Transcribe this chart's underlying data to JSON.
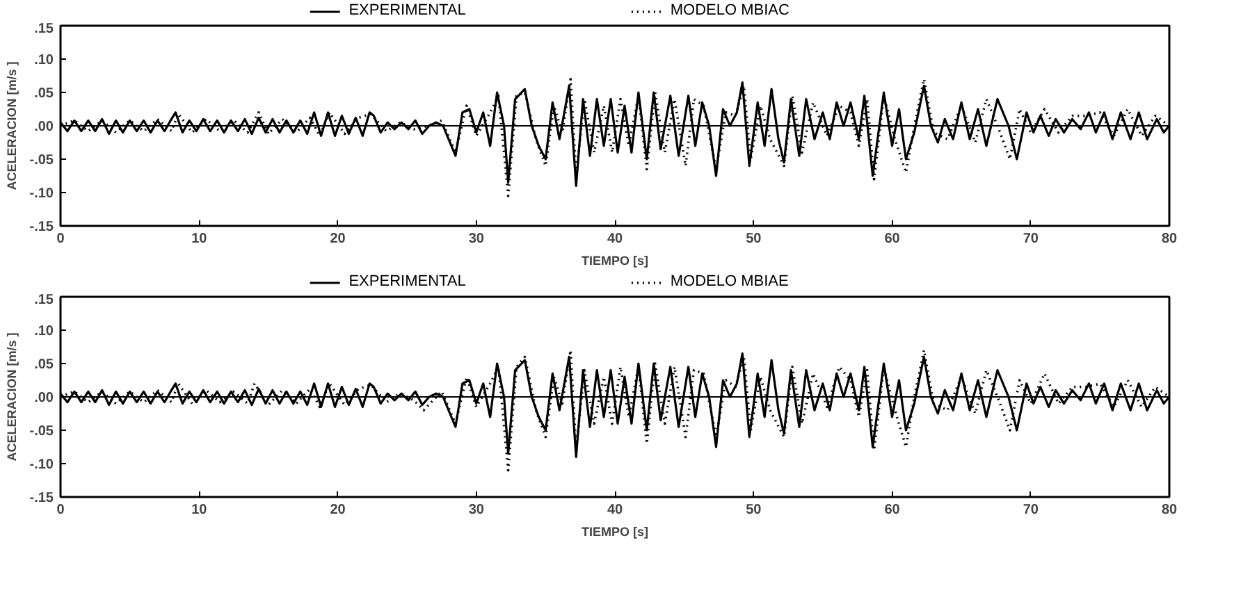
{
  "chart_data": [
    {
      "type": "line",
      "xlabel": "TIEMPO [s]",
      "ylabel": "ACELERACION [m/s ]",
      "legend": "top",
      "grid": false,
      "xlim": [
        0,
        80
      ],
      "ylim": [
        -0.15,
        0.15
      ],
      "xticks": [
        0,
        10,
        20,
        30,
        40,
        50,
        60,
        70,
        80
      ],
      "yticks": [
        {
          "value": -0.15,
          "label": "-.15"
        },
        {
          "value": -0.1,
          "label": "-.10"
        },
        {
          "value": -0.05,
          "label": "-.05"
        },
        {
          "value": 0,
          "label": ".00"
        },
        {
          "value": 0.05,
          "label": ".05"
        },
        {
          "value": 0.1,
          "label": ".10"
        },
        {
          "value": 0.15,
          "label": ".15"
        }
      ],
      "ref_lines": [
        {
          "axis": "y",
          "value": 0,
          "color": "#000000"
        }
      ],
      "series": [
        {
          "name": "EXPERIMENTAL",
          "color": "#000000",
          "line_style": "solid",
          "x": [
            0,
            0.5,
            1,
            1.5,
            2,
            2.5,
            3,
            3.5,
            4,
            4.5,
            5,
            5.5,
            6,
            6.5,
            7,
            7.5,
            8,
            8.3,
            8.8,
            9.3,
            9.8,
            10.3,
            10.8,
            11.3,
            11.8,
            12.3,
            12.8,
            13.3,
            13.8,
            14.3,
            14.8,
            15.3,
            15.8,
            16.3,
            16.8,
            17.3,
            17.8,
            18.3,
            18.8,
            19.3,
            19.8,
            20.3,
            20.8,
            21.3,
            21.8,
            22.3,
            22.6,
            23.1,
            23.6,
            24.1,
            24.6,
            25.1,
            25.6,
            26.1,
            26.6,
            27.1,
            27.6,
            28.5,
            29,
            29.5,
            30,
            30.5,
            31,
            31.5,
            32,
            32.3,
            32.8,
            33.5,
            34,
            34.5,
            35,
            35.5,
            36,
            36.7,
            37.2,
            37.7,
            38.2,
            38.7,
            39.2,
            39.7,
            40.2,
            40.7,
            41.2,
            41.7,
            42.3,
            42.8,
            43.3,
            44,
            44.6,
            45.3,
            45.8,
            46.3,
            46.8,
            47.3,
            47.8,
            48.3,
            48.8,
            49.2,
            49.7,
            50.3,
            50.8,
            51.3,
            51.8,
            52.2,
            52.7,
            53.3,
            53.8,
            54.4,
            55,
            55.5,
            56,
            56.5,
            57,
            57.6,
            58,
            58.6,
            59.4,
            60,
            60.5,
            61,
            61.6,
            62.3,
            62.8,
            63.3,
            63.8,
            64.4,
            65,
            65.6,
            66.2,
            66.8,
            67.6,
            68.4,
            69,
            69.7,
            70.2,
            70.7,
            71.3,
            71.8,
            72.4,
            73,
            73.6,
            74.2,
            74.7,
            75.3,
            75.9,
            76.5,
            77.2,
            77.8,
            78.4,
            79.1,
            79.6,
            80
          ],
          "values": [
            0.005,
            -0.008,
            0.008,
            -0.008,
            0.008,
            -0.008,
            0.01,
            -0.012,
            0.008,
            -0.01,
            0.008,
            -0.008,
            0.008,
            -0.01,
            0.008,
            -0.008,
            0.01,
            0.02,
            -0.01,
            0.008,
            -0.008,
            0.01,
            -0.008,
            0.008,
            -0.01,
            0.008,
            -0.008,
            0.01,
            -0.012,
            0.012,
            -0.01,
            0.01,
            -0.01,
            0.008,
            -0.01,
            0.008,
            -0.012,
            0.02,
            -0.015,
            0.02,
            -0.015,
            0.015,
            -0.012,
            0.012,
            -0.015,
            0.02,
            0.015,
            -0.01,
            0.005,
            -0.005,
            0.005,
            -0.005,
            0.008,
            -0.012,
            0,
            0.005,
            0,
            -0.045,
            0.02,
            0.025,
            -0.01,
            0.02,
            -0.03,
            0.05,
            0,
            -0.085,
            0.04,
            0.055,
            0,
            -0.03,
            -0.05,
            0.035,
            -0.02,
            0.06,
            -0.09,
            0.04,
            -0.045,
            0.04,
            -0.03,
            0.04,
            -0.04,
            0.03,
            -0.04,
            0.05,
            -0.05,
            0.05,
            -0.035,
            0.045,
            -0.045,
            0.045,
            -0.03,
            0.035,
            0,
            -0.075,
            0.025,
            0,
            0.02,
            0.065,
            -0.06,
            0.035,
            -0.03,
            0.055,
            -0.02,
            -0.055,
            0.04,
            -0.045,
            0.04,
            -0.02,
            0.02,
            -0.02,
            0.035,
            0,
            0.035,
            -0.02,
            0.045,
            -0.075,
            0.05,
            -0.03,
            0.025,
            -0.05,
            -0.01,
            0.06,
            0,
            -0.025,
            0.01,
            -0.02,
            0.035,
            -0.02,
            0.025,
            -0.03,
            0.04,
            0,
            -0.05,
            0.02,
            -0.01,
            0.015,
            -0.015,
            0.01,
            -0.01,
            0.01,
            -0.005,
            0.02,
            -0.01,
            0.02,
            -0.02,
            0.02,
            -0.02,
            0.02,
            -0.02,
            0.01,
            -0.01,
            0
          ]
        },
        {
          "name": "MODELO MBIAC",
          "color": "#000000",
          "line_style": "dotted",
          "x": [
            0,
            1,
            2,
            3,
            4,
            5,
            6,
            7,
            8,
            8.5,
            9.5,
            10.5,
            11.5,
            12.5,
            13.5,
            14.3,
            15,
            16,
            17,
            18,
            18.7,
            19.4,
            20.5,
            21.5,
            22.4,
            23.5,
            24.5,
            25.5,
            26.5,
            27.5,
            28.5,
            29.3,
            30,
            31,
            31.6,
            32.3,
            32.9,
            33.5,
            34.3,
            35,
            35.6,
            36.2,
            36.8,
            37.2,
            37.8,
            38.5,
            39.2,
            39.8,
            40.4,
            41,
            41.7,
            42.3,
            42.9,
            43.6,
            44.3,
            45.1,
            45.7,
            46.4,
            47.3,
            48,
            48.7,
            49.3,
            49.8,
            50.5,
            51.2,
            52.2,
            52.8,
            53.5,
            54.3,
            55.3,
            56.2,
            57,
            57.6,
            58.2,
            58.7,
            59.4,
            60.2,
            61,
            61.6,
            62.3,
            63,
            64,
            65,
            66,
            66.8,
            67.7,
            68.5,
            69.2,
            70,
            71,
            72,
            73,
            74,
            75,
            76,
            77,
            78,
            79,
            80
          ],
          "values": [
            0,
            0.008,
            -0.008,
            0.008,
            -0.01,
            0.008,
            -0.008,
            0.01,
            -0.008,
            0.018,
            -0.01,
            0.01,
            -0.008,
            0.008,
            -0.01,
            0.02,
            -0.012,
            0.01,
            -0.01,
            0.012,
            -0.015,
            0.02,
            -0.012,
            0.012,
            0.018,
            -0.008,
            0.005,
            -0.005,
            0,
            0.008,
            -0.04,
            0.03,
            -0.015,
            0.02,
            0.045,
            -0.105,
            0.045,
            0.05,
            -0.02,
            -0.06,
            0.03,
            -0.01,
            0.07,
            -0.075,
            0.04,
            -0.04,
            0.03,
            -0.04,
            0.04,
            -0.03,
            0.045,
            -0.065,
            0.05,
            -0.04,
            0.04,
            -0.06,
            0.04,
            0.03,
            -0.065,
            0.02,
            0.015,
            0.06,
            -0.05,
            0.03,
            -0.02,
            -0.06,
            0.045,
            -0.04,
            0.035,
            -0.015,
            0.03,
            0.02,
            -0.03,
            0.04,
            -0.08,
            0.045,
            -0.02,
            -0.07,
            0,
            0.07,
            -0.01,
            -0.02,
            0.03,
            -0.025,
            0.04,
            -0.005,
            -0.05,
            0.025,
            -0.01,
            0.025,
            -0.01,
            0.015,
            0.015,
            0.02,
            -0.015,
            0.025,
            -0.015,
            0.015,
            0
          ]
        }
      ]
    },
    {
      "type": "line",
      "xlabel": "TIEMPO [s]",
      "ylabel": "ACELERACION [m/s ]",
      "legend": "top",
      "grid": false,
      "xlim": [
        0,
        80
      ],
      "ylim": [
        -0.15,
        0.15
      ],
      "xticks": [
        0,
        10,
        20,
        30,
        40,
        50,
        60,
        70,
        80
      ],
      "yticks": [
        {
          "value": -0.15,
          "label": "-.15"
        },
        {
          "value": -0.1,
          "label": "-.10"
        },
        {
          "value": -0.05,
          "label": "-.05"
        },
        {
          "value": 0,
          "label": ".00"
        },
        {
          "value": 0.05,
          "label": ".05"
        },
        {
          "value": 0.1,
          "label": ".10"
        },
        {
          "value": 0.15,
          "label": ".15"
        }
      ],
      "ref_lines": [
        {
          "axis": "y",
          "value": 0,
          "color": "#000000"
        }
      ],
      "series": [
        {
          "name": "EXPERIMENTAL",
          "color": "#000000",
          "line_style": "solid",
          "x": [
            0,
            0.5,
            1,
            1.5,
            2,
            2.5,
            3,
            3.5,
            4,
            4.5,
            5,
            5.5,
            6,
            6.5,
            7,
            7.5,
            8,
            8.3,
            8.8,
            9.3,
            9.8,
            10.3,
            10.8,
            11.3,
            11.8,
            12.3,
            12.8,
            13.3,
            13.8,
            14.3,
            14.8,
            15.3,
            15.8,
            16.3,
            16.8,
            17.3,
            17.8,
            18.3,
            18.8,
            19.3,
            19.8,
            20.3,
            20.8,
            21.3,
            21.8,
            22.3,
            22.6,
            23.1,
            23.6,
            24.1,
            24.6,
            25.1,
            25.6,
            26.1,
            26.6,
            27.1,
            27.6,
            28.5,
            29,
            29.5,
            30,
            30.5,
            31,
            31.5,
            32,
            32.3,
            32.8,
            33.5,
            34,
            34.5,
            35,
            35.5,
            36,
            36.7,
            37.2,
            37.7,
            38.2,
            38.7,
            39.2,
            39.7,
            40.2,
            40.7,
            41.2,
            41.7,
            42.3,
            42.8,
            43.3,
            44,
            44.6,
            45.3,
            45.8,
            46.3,
            46.8,
            47.3,
            47.8,
            48.3,
            48.8,
            49.2,
            49.7,
            50.3,
            50.8,
            51.3,
            51.8,
            52.2,
            52.7,
            53.3,
            53.8,
            54.4,
            55,
            55.5,
            56,
            56.5,
            57,
            57.6,
            58,
            58.6,
            59.4,
            60,
            60.5,
            61,
            61.6,
            62.3,
            62.8,
            63.3,
            63.8,
            64.4,
            65,
            65.6,
            66.2,
            66.8,
            67.6,
            68.4,
            69,
            69.7,
            70.2,
            70.7,
            71.3,
            71.8,
            72.4,
            73,
            73.6,
            74.2,
            74.7,
            75.3,
            75.9,
            76.5,
            77.2,
            77.8,
            78.4,
            79.1,
            79.6,
            80
          ],
          "values": [
            0.005,
            -0.008,
            0.008,
            -0.008,
            0.008,
            -0.008,
            0.01,
            -0.012,
            0.008,
            -0.01,
            0.008,
            -0.008,
            0.008,
            -0.01,
            0.008,
            -0.008,
            0.01,
            0.02,
            -0.01,
            0.008,
            -0.008,
            0.01,
            -0.008,
            0.008,
            -0.01,
            0.008,
            -0.008,
            0.01,
            -0.012,
            0.012,
            -0.01,
            0.01,
            -0.01,
            0.008,
            -0.01,
            0.008,
            -0.012,
            0.02,
            -0.015,
            0.02,
            -0.015,
            0.015,
            -0.012,
            0.012,
            -0.015,
            0.02,
            0.015,
            -0.01,
            0.005,
            -0.005,
            0.005,
            -0.005,
            0.008,
            -0.012,
            0,
            0.005,
            0,
            -0.045,
            0.02,
            0.025,
            -0.01,
            0.02,
            -0.03,
            0.05,
            0,
            -0.085,
            0.04,
            0.055,
            0,
            -0.03,
            -0.05,
            0.035,
            -0.02,
            0.06,
            -0.09,
            0.04,
            -0.045,
            0.04,
            -0.03,
            0.04,
            -0.04,
            0.03,
            -0.04,
            0.05,
            -0.05,
            0.05,
            -0.035,
            0.045,
            -0.045,
            0.045,
            -0.03,
            0.035,
            0,
            -0.075,
            0.025,
            0,
            0.02,
            0.065,
            -0.06,
            0.035,
            -0.03,
            0.055,
            -0.02,
            -0.055,
            0.04,
            -0.045,
            0.04,
            -0.02,
            0.02,
            -0.02,
            0.035,
            0,
            0.035,
            -0.02,
            0.045,
            -0.075,
            0.05,
            -0.03,
            0.025,
            -0.05,
            -0.01,
            0.06,
            0,
            -0.025,
            0.01,
            -0.02,
            0.035,
            -0.02,
            0.025,
            -0.03,
            0.04,
            0,
            -0.05,
            0.02,
            -0.01,
            0.015,
            -0.015,
            0.01,
            -0.01,
            0.01,
            -0.005,
            0.02,
            -0.01,
            0.02,
            -0.02,
            0.02,
            -0.02,
            0.02,
            -0.02,
            0.01,
            -0.01,
            0
          ]
        },
        {
          "name": "MODELO MBIAE",
          "color": "#000000",
          "line_style": "dotted",
          "x": [
            0,
            1,
            2,
            3,
            4,
            5,
            6,
            7,
            8,
            8.5,
            9.5,
            10.5,
            11.5,
            12.5,
            13.5,
            14,
            15,
            16,
            17,
            18,
            18.7,
            19.4,
            20.5,
            21.5,
            22.4,
            23.5,
            24.5,
            25.5,
            26.2,
            27.5,
            28.5,
            29.3,
            30,
            31,
            31.6,
            32.3,
            32.9,
            33.5,
            34.3,
            35,
            35.6,
            36.2,
            36.8,
            37.2,
            37.8,
            38.5,
            39.2,
            39.8,
            40.4,
            41,
            41.7,
            42.3,
            42.9,
            43.6,
            44.3,
            45.1,
            45.7,
            46.4,
            47.3,
            48,
            48.7,
            49.3,
            49.8,
            50.5,
            51.2,
            52.2,
            52.8,
            53.5,
            54.3,
            55.3,
            56.2,
            57,
            57.6,
            58.2,
            58.7,
            59.4,
            60.2,
            61,
            61.6,
            62.3,
            63,
            64,
            65,
            66,
            66.8,
            67.7,
            68.5,
            69.2,
            70,
            71,
            72,
            73,
            74,
            75,
            76,
            77,
            78,
            79,
            80
          ],
          "values": [
            0,
            0.008,
            -0.008,
            0.008,
            -0.01,
            0.008,
            -0.008,
            0.01,
            -0.008,
            0.02,
            -0.01,
            0.01,
            -0.008,
            0.008,
            -0.01,
            0.02,
            -0.012,
            0.01,
            -0.01,
            0.012,
            -0.015,
            0.02,
            -0.012,
            0.012,
            0.018,
            -0.008,
            0.005,
            -0.005,
            -0.02,
            0.008,
            -0.04,
            0.03,
            -0.015,
            0.02,
            0.045,
            -0.11,
            0.045,
            0.06,
            -0.02,
            -0.06,
            0.03,
            -0.01,
            0.07,
            -0.08,
            0.04,
            -0.04,
            0.03,
            -0.04,
            0.045,
            -0.03,
            0.045,
            -0.07,
            0.05,
            -0.04,
            0.045,
            -0.06,
            0.04,
            0.035,
            -0.06,
            0.025,
            0.015,
            0.06,
            -0.05,
            0.03,
            -0.02,
            -0.06,
            0.045,
            -0.04,
            0.035,
            -0.015,
            0.045,
            0.025,
            -0.03,
            0.04,
            -0.08,
            0.045,
            -0.02,
            -0.075,
            0,
            0.07,
            -0.01,
            -0.02,
            0.03,
            -0.025,
            0.04,
            -0.005,
            -0.05,
            0.025,
            -0.01,
            0.035,
            -0.01,
            0.015,
            0.015,
            0.02,
            -0.015,
            0.025,
            -0.015,
            0.015,
            0
          ]
        }
      ]
    }
  ]
}
